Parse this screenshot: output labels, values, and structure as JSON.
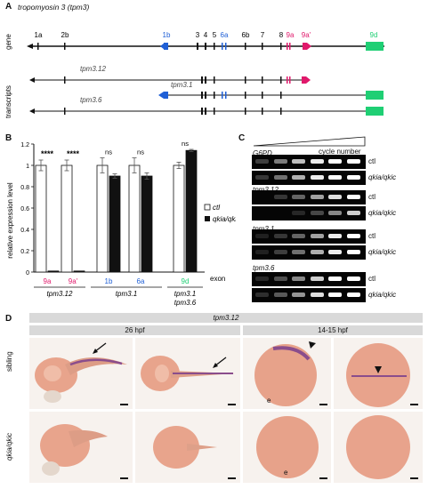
{
  "panelA": {
    "label": "A",
    "title": "tropomyosin 3 (tpm3)",
    "side_gene": "gene",
    "side_transcripts": "transcripts",
    "exons": [
      {
        "name": "1a",
        "color": "#111111"
      },
      {
        "name": "2b",
        "color": "#111111"
      },
      {
        "name": "1b",
        "color": "#1f5fd6"
      },
      {
        "name": "3",
        "color": "#111111"
      },
      {
        "name": "4",
        "color": "#111111"
      },
      {
        "name": "5",
        "color": "#111111"
      },
      {
        "name": "6a",
        "color": "#1f5fd6"
      },
      {
        "name": "6b",
        "color": "#111111"
      },
      {
        "name": "7",
        "color": "#111111"
      },
      {
        "name": "8",
        "color": "#111111"
      },
      {
        "name": "9a",
        "color": "#e0196b"
      },
      {
        "name": "9a'",
        "color": "#e0196b"
      },
      {
        "name": "9d",
        "color": "#1fcf74"
      }
    ],
    "transcripts": [
      "tpm3.12",
      "tpm3.1",
      "tpm3.6"
    ]
  },
  "panelB": {
    "label": "B",
    "chart_data": {
      "type": "bar",
      "ylabel": "relative expression level",
      "ylim": [
        0,
        1.2
      ],
      "yticks": [
        "0",
        "0.2",
        "0.4",
        "0.6",
        "0.8",
        "1",
        "1.2"
      ],
      "categories": [
        "9a",
        "9a'",
        "1b",
        "6a",
        "9d"
      ],
      "category_colors": [
        "#e0196b",
        "#e0196b",
        "#1f5fd6",
        "#1f5fd6",
        "#1fcf74"
      ],
      "series": [
        {
          "name": "ctl",
          "values": [
            1.0,
            1.0,
            1.0,
            1.0,
            1.0
          ]
        },
        {
          "name": "qkia/qkic",
          "values": [
            0.01,
            0.01,
            0.9,
            0.9,
            1.14
          ]
        }
      ],
      "errors": [
        [
          0.05,
          0.05,
          0.07,
          0.07,
          0.03
        ],
        [
          0.0,
          0.0,
          0.02,
          0.03,
          0.01
        ]
      ],
      "significance": [
        "****",
        "****",
        "ns",
        "ns",
        "ns"
      ],
      "groups": [
        "tpm3.12",
        "tpm3.1",
        "tpm3.1\ntpm3.6"
      ],
      "xlabel": "exon",
      "legend": [
        "ctl",
        "qkia/qkic"
      ]
    }
  },
  "panelC": {
    "label": "C",
    "cycle_label": "cycle number",
    "genes": [
      "G6PD",
      "tpm3.12",
      "tpm3.1",
      "tpm3.6"
    ],
    "row_labels": [
      "ctl",
      "qkia/qkic"
    ]
  },
  "panelD": {
    "label": "D",
    "header": "tpm3.12",
    "stage_left": "26 hpf",
    "stage_right": "14-15 hpf",
    "row_sibling": "sibling",
    "row_mutant": "qkia/qkic",
    "e_label": "e"
  }
}
